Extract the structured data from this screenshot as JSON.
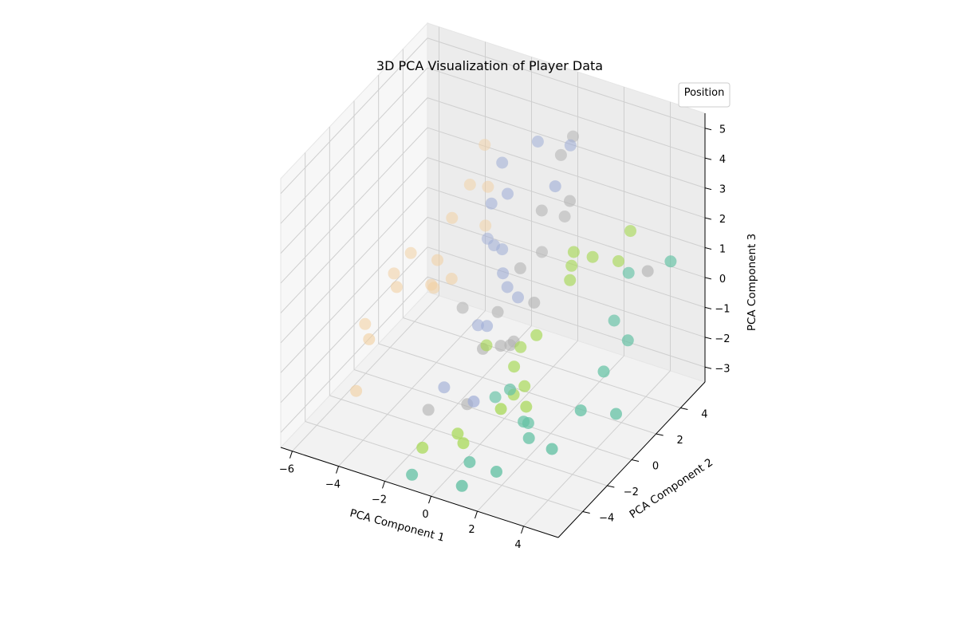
{
  "chart_data": {
    "type": "scatter",
    "projection": "3d",
    "title": "3D PCA Visualization of Player Data",
    "xlabel": "PCA Component 1",
    "ylabel": "PCA Component 2",
    "zlabel": "PCA Component 3",
    "xlim": [
      -6.5,
      5.5
    ],
    "ylim": [
      -6,
      6
    ],
    "zlim": [
      -3.5,
      5.5
    ],
    "xticks": [
      -6,
      -4,
      -2,
      0,
      2,
      4
    ],
    "yticks": [
      -4,
      -2,
      0,
      2,
      4
    ],
    "zticks": [
      -3,
      -2,
      -1,
      0,
      1,
      2,
      3,
      4,
      5
    ],
    "grid": true,
    "legend": {
      "title": "Position",
      "placement": "top-right"
    },
    "series": [
      {
        "color": "#f2cfa0",
        "points": [
          [
            -5.2,
            0.8,
            -0.3
          ],
          [
            -5.6,
            -0.8,
            -1.4
          ],
          [
            -4.9,
            -1.8,
            -1.3
          ],
          [
            -5.3,
            -2.1,
            -3.0
          ],
          [
            -4.5,
            -0.3,
            -0.1
          ],
          [
            -3.9,
            1.9,
            0.0
          ],
          [
            -3.5,
            3.8,
            1.8
          ],
          [
            -3.8,
            2.9,
            1.0
          ],
          [
            -3.8,
            1.2,
            -0.5
          ],
          [
            -3.2,
            4.5,
            0.2
          ],
          [
            -3.3,
            4.9,
            1.3
          ],
          [
            -3.6,
            5.2,
            2.5
          ],
          [
            -3.9,
            1.6,
            -0.8
          ],
          [
            -3.5,
            2.3,
            -0.7
          ],
          [
            -5.0,
            1.8,
            0.0
          ]
        ]
      },
      {
        "color": "#9fadd6",
        "points": [
          [
            -2.0,
            3.6,
            3.0
          ],
          [
            -1.2,
            5.0,
            3.3
          ],
          [
            0.0,
            5.4,
            3.3
          ],
          [
            0.4,
            3.4,
            2.9
          ],
          [
            -1.5,
            3.1,
            2.3
          ],
          [
            -2.2,
            3.1,
            1.8
          ],
          [
            -3.0,
            4.3,
            -0.1
          ],
          [
            -2.3,
            3.5,
            0.2
          ],
          [
            -2.0,
            3.6,
            0.1
          ],
          [
            -1.6,
            2.9,
            -0.3
          ],
          [
            -1.3,
            2.7,
            -0.6
          ],
          [
            -1.0,
            3.0,
            -1.0
          ],
          [
            -1.6,
            1.6,
            -1.5
          ],
          [
            -2.2,
            2.0,
            -1.8
          ],
          [
            -2.5,
            -0.2,
            -3.0
          ],
          [
            -0.8,
            -1.0,
            -2.7
          ]
        ]
      },
      {
        "color": "#b3b3b3",
        "points": [
          [
            -0.1,
            5.8,
            3.4
          ],
          [
            -0.2,
            5.0,
            3.1
          ],
          [
            0.5,
            4.4,
            2.0
          ],
          [
            -0.5,
            4.0,
            1.6
          ],
          [
            -0.3,
            5.5,
            0.8
          ],
          [
            -0.6,
            4.2,
            0.1
          ],
          [
            -0.9,
            3.0,
            0.0
          ],
          [
            -2.6,
            1.5,
            -1.1
          ],
          [
            -1.4,
            2.1,
            -1.2
          ],
          [
            -0.3,
            3.0,
            -1.0
          ],
          [
            -1.3,
            0.7,
            -1.8
          ],
          [
            -0.9,
            1.4,
            -1.9
          ],
          [
            -0.6,
            1.9,
            -1.9
          ],
          [
            -0.7,
            1.8,
            -2.0
          ],
          [
            -2.6,
            -1.3,
            -3.3
          ],
          [
            -1.4,
            -0.4,
            -3.2
          ],
          [
            3.5,
            5.1,
            0.1
          ]
        ]
      },
      {
        "color": "#a6d854",
        "points": [
          [
            1.7,
            4.0,
            0.6
          ],
          [
            1.2,
            3.4,
            0.9
          ],
          [
            1.0,
            3.6,
            0.3
          ],
          [
            1.3,
            2.9,
            0.2
          ],
          [
            2.5,
            4.6,
            0.4
          ],
          [
            2.7,
            5.2,
            1.2
          ],
          [
            0.7,
            1.3,
            -1.1
          ],
          [
            -0.2,
            1.7,
            -1.9
          ],
          [
            -1.2,
            0.8,
            -1.7
          ],
          [
            0.1,
            0.6,
            -2.0
          ],
          [
            0.4,
            0.0,
            -2.6
          ],
          [
            0.8,
            -1.8,
            -2.2
          ],
          [
            -0.7,
            -2.5,
            -3.1
          ],
          [
            -0.4,
            -2.6,
            -3.3
          ],
          [
            -1.8,
            -3.3,
            -3.5
          ],
          [
            1.1,
            -0.3,
            -2.7
          ],
          [
            0.5,
            0.7,
            -2.6
          ]
        ]
      },
      {
        "color": "#66c2a5",
        "points": [
          [
            4.7,
            4.7,
            0.9
          ],
          [
            3.2,
            4.1,
            0.4
          ],
          [
            3.0,
            3.3,
            -0.9
          ],
          [
            3.7,
            3.1,
            -1.3
          ],
          [
            3.5,
            1.5,
            -1.7
          ],
          [
            3.3,
            0.0,
            -2.4
          ],
          [
            4.3,
            1.0,
            -2.7
          ],
          [
            0.4,
            -0.3,
            -2.3
          ],
          [
            -0.5,
            0.2,
            -3.0
          ],
          [
            1.2,
            -0.7,
            -3.0
          ],
          [
            1.8,
            -1.4,
            -3.1
          ],
          [
            2.9,
            -1.6,
            -3.1
          ],
          [
            1.4,
            -3.3,
            -3.5
          ],
          [
            0.4,
            -3.6,
            -3.3
          ],
          [
            0.7,
            -4.8,
            -3.5
          ],
          [
            -1.3,
            -5.1,
            -3.5
          ],
          [
            1.4,
            -0.7,
            -3.0
          ]
        ]
      }
    ]
  }
}
